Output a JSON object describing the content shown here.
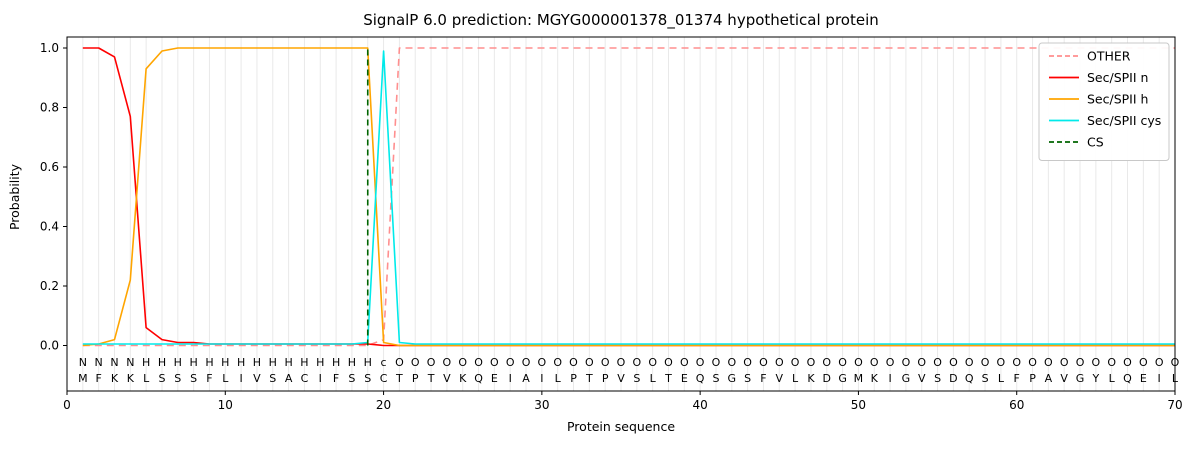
{
  "chart_data": {
    "type": "line",
    "title": "SignalP 6.0 prediction: MGYG000001378_01374 hypothetical protein",
    "xlabel": "Protein sequence",
    "ylabel": "Probability",
    "xlim": [
      0,
      70
    ],
    "ylim": [
      0.0,
      1.0
    ],
    "xticks": [
      0,
      10,
      20,
      30,
      40,
      50,
      60,
      70
    ],
    "yticks": [
      0.0,
      0.2,
      0.4,
      0.6,
      0.8,
      1.0
    ],
    "grid": "vertical-per-residue",
    "legend_position": "upper right",
    "x_min": 1,
    "x_max": 70,
    "sequence": "MFKKLSSSFLIVSACIFSSCTPTVKQEIAILPTPVSLTEQSGSFVLKDGMKIGVSDQSLFPAVGYLQEIL",
    "region_labels": "NNNNHHHHHHHHHHHHHHHcOOOOOOOOOOOOOOOOOOOOOOOOOOOOOOOOOOOOOOOOOOOOOOOOOO",
    "region_colors": {
      "N": "#ff0000",
      "H": "#ffa500",
      "c": "#00cccc",
      "O": "#9a9a9a"
    },
    "sequence_color": "#000000",
    "grid_color": "#e9e9e9",
    "spine_color": "#000000",
    "series": [
      {
        "name": "OTHER",
        "color": "#ff8f8f",
        "dash": true,
        "values": [
          0,
          0,
          0,
          0,
          0,
          0,
          0,
          0,
          0,
          0,
          0,
          0,
          0,
          0,
          0,
          0,
          0,
          0,
          0,
          0.02,
          1,
          1,
          1,
          1,
          1,
          1,
          1,
          1,
          1,
          1,
          1,
          1,
          1,
          1,
          1,
          1,
          1,
          1,
          1,
          1,
          1,
          1,
          1,
          1,
          1,
          1,
          1,
          1,
          1,
          1,
          1,
          1,
          1,
          1,
          1,
          1,
          1,
          1,
          1,
          1,
          1,
          1,
          1,
          1,
          1,
          1,
          1,
          1,
          1,
          1
        ]
      },
      {
        "name": "Sec/SPII n",
        "color": "#ff0000",
        "dash": false,
        "values": [
          1,
          1,
          0.97,
          0.77,
          0.06,
          0.02,
          0.01,
          0.01,
          0.005,
          0.005,
          0.005,
          0.005,
          0.005,
          0.005,
          0.005,
          0.005,
          0.005,
          0.005,
          0.005,
          0,
          0,
          0,
          0,
          0,
          0,
          0,
          0,
          0,
          0,
          0,
          0,
          0,
          0,
          0,
          0,
          0,
          0,
          0,
          0,
          0,
          0,
          0,
          0,
          0,
          0,
          0,
          0,
          0,
          0,
          0,
          0,
          0,
          0,
          0,
          0,
          0,
          0,
          0,
          0,
          0,
          0,
          0,
          0,
          0,
          0,
          0,
          0,
          0,
          0,
          0
        ]
      },
      {
        "name": "Sec/SPII h",
        "color": "#ffa500",
        "dash": false,
        "values": [
          0,
          0.005,
          0.02,
          0.22,
          0.93,
          0.99,
          1,
          1,
          1,
          1,
          1,
          1,
          1,
          1,
          1,
          1,
          1,
          1,
          1,
          0.01,
          0,
          0,
          0,
          0,
          0,
          0,
          0,
          0,
          0,
          0,
          0,
          0,
          0,
          0,
          0,
          0,
          0,
          0,
          0,
          0,
          0,
          0,
          0,
          0,
          0,
          0,
          0,
          0,
          0,
          0,
          0,
          0,
          0,
          0,
          0,
          0,
          0,
          0,
          0,
          0,
          0,
          0,
          0,
          0,
          0,
          0,
          0,
          0,
          0,
          0
        ]
      },
      {
        "name": "Sec/SPII cys",
        "color": "#00eaea",
        "dash": false,
        "values": [
          0.005,
          0.005,
          0.005,
          0.005,
          0.005,
          0.005,
          0.005,
          0.005,
          0.005,
          0.005,
          0.005,
          0.005,
          0.005,
          0.005,
          0.005,
          0.005,
          0.005,
          0.005,
          0.01,
          0.99,
          0.01,
          0.005,
          0.005,
          0.005,
          0.005,
          0.005,
          0.005,
          0.005,
          0.005,
          0.005,
          0.005,
          0.005,
          0.005,
          0.005,
          0.005,
          0.005,
          0.005,
          0.005,
          0.005,
          0.005,
          0.005,
          0.005,
          0.005,
          0.005,
          0.005,
          0.005,
          0.005,
          0.005,
          0.005,
          0.005,
          0.005,
          0.005,
          0.005,
          0.005,
          0.005,
          0.005,
          0.005,
          0.005,
          0.005,
          0.005,
          0.005,
          0.005,
          0.005,
          0.005,
          0.005,
          0.005,
          0.005,
          0.005,
          0.005,
          0.005
        ]
      },
      {
        "name": "CS",
        "color": "#006400",
        "dash": true,
        "type": "vline",
        "x": 19
      }
    ]
  }
}
